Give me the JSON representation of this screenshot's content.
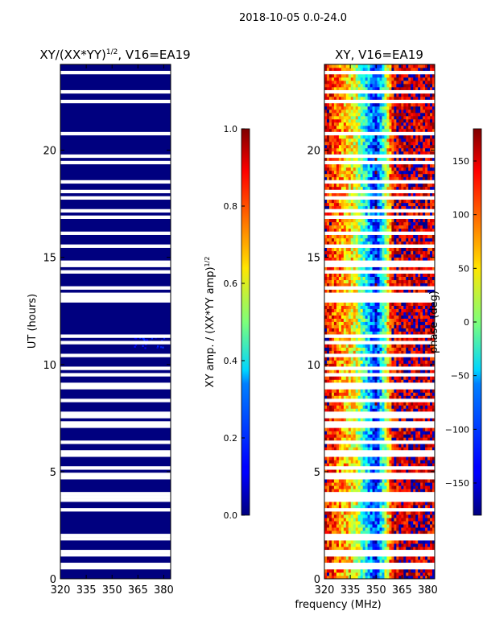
{
  "figure": {
    "suptitle": "2018-10-05 0.0-24.0",
    "xlabel": "frequency (MHz)"
  },
  "chart_data": [
    {
      "type": "heatmap",
      "title_main": "XY/(XX*YY)",
      "title_exp": "1/2",
      "title_tail": ", V16=EA19",
      "ylabel": "UT (hours)",
      "xlim": [
        320,
        384
      ],
      "ylim": [
        0,
        24
      ],
      "xticks": [
        320,
        335,
        350,
        365,
        380
      ],
      "yticks": [
        0,
        5,
        10,
        15,
        20
      ],
      "xtick_labels": [
        "320",
        "335",
        "350",
        "365",
        "380"
      ],
      "ytick_labels": [
        "0",
        "5",
        "10",
        "15",
        "20"
      ],
      "background_color": "#00007f",
      "description_values": {
        "typical_amplitude": 0.02,
        "bright_patch_amplitude": 0.12
      },
      "bright_patch": {
        "x_range": [
          362,
          380
        ],
        "y_range": [
          10.8,
          11.4
        ]
      },
      "colorbar": {
        "label_main": "XY amp. / (XX*YY amp)",
        "label_exp": "1/2",
        "range": [
          0.0,
          1.0
        ],
        "ticks": [
          "0.0",
          "0.2",
          "0.4",
          "0.6",
          "0.8",
          "1.0"
        ]
      }
    },
    {
      "type": "heatmap",
      "title": "XY, V16=EA19",
      "xlim": [
        320,
        384
      ],
      "ylim": [
        0,
        24
      ],
      "xticks": [
        320,
        335,
        350,
        365,
        380
      ],
      "yticks": [
        0,
        5,
        10,
        15,
        20
      ],
      "xtick_labels": [
        "320",
        "335",
        "350",
        "365",
        "380"
      ],
      "ytick_labels": [
        "0",
        "5",
        "10",
        "15",
        "20"
      ],
      "phase_profile": {
        "freq": [
          320,
          330,
          338,
          345,
          350,
          355,
          360,
          370,
          384
        ],
        "phase_deg": [
          150,
          80,
          40,
          -60,
          -130,
          -10,
          150,
          160,
          155
        ]
      },
      "colorbar": {
        "label": "phase (deg)",
        "range": [
          -180,
          180
        ],
        "ticks": [
          "−150",
          "−100",
          "−50",
          "0",
          "50",
          "100",
          "150"
        ]
      }
    }
  ]
}
